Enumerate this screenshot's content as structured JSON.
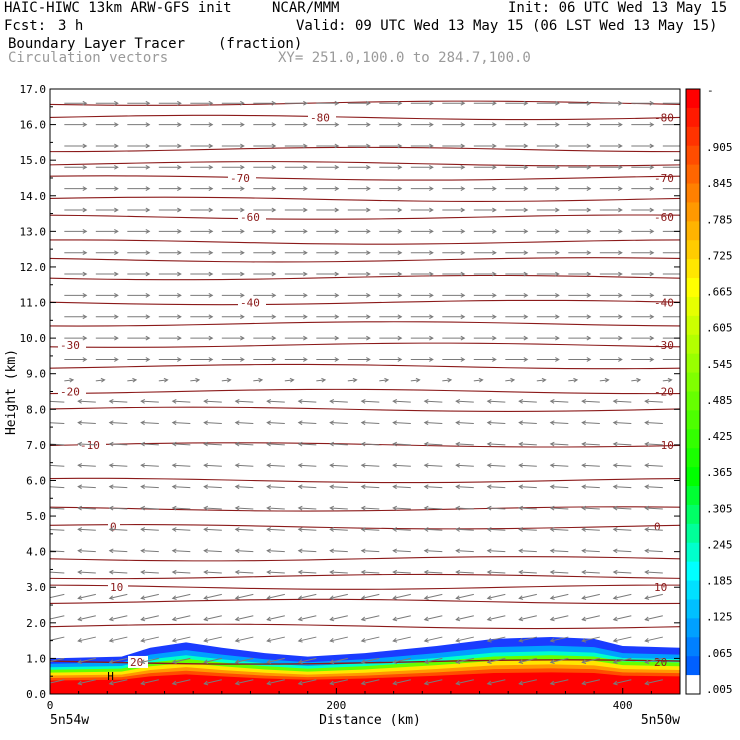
{
  "header": {
    "model": "HAIC-HIWC 13km ARW-GFS init",
    "org": "NCAR/MMM",
    "init": "Init: 06 UTC Wed 13 May 15",
    "fcst_label": "Fcst:",
    "fcst_value": "3 h",
    "valid": "Valid: 09 UTC Wed 13 May 15 (06 LST Wed 13 May 15)",
    "field": "Boundary Layer Tracer",
    "field_units": "(fraction)",
    "vectors": "Circulation vectors",
    "xy": "XY= 251.0,100.0 to 284.7,100.0"
  },
  "chart_data": {
    "type": "cross-section",
    "ylabel": "Height (km)",
    "xlabel": "Distance (km)",
    "ylim": [
      0,
      17
    ],
    "xlim": [
      0,
      440
    ],
    "yticks": [
      0,
      1,
      2,
      3,
      4,
      5,
      6,
      7,
      8,
      9,
      10,
      11,
      12,
      13,
      14,
      15,
      16,
      17
    ],
    "ytick_labels": [
      "0.0",
      "1.0",
      "2.0",
      "3.0",
      "4.0",
      "5.0",
      "6.0",
      "7.0",
      "8.0",
      "9.0",
      "10.0",
      "11.0",
      "12.0",
      "13.0",
      "14.0",
      "15.0",
      "16.0",
      "17.0"
    ],
    "xticks": [
      0,
      200,
      400
    ],
    "xtick_labels": [
      "0",
      "200",
      "400"
    ],
    "x_end_labels": [
      "5n54w",
      "5n50w"
    ],
    "colorbar": {
      "labels": [
        ".905",
        ".845",
        ".785",
        ".725",
        ".665",
        ".605",
        ".545",
        ".485",
        ".425",
        ".365",
        ".305",
        ".245",
        ".185",
        ".125",
        ".065",
        ".005"
      ],
      "top_label": "-",
      "colors": [
        "#ff0000",
        "#ff1a00",
        "#ff3300",
        "#ff4d00",
        "#ff6600",
        "#ff8000",
        "#ff9900",
        "#ffb300",
        "#ffcc00",
        "#ffe600",
        "#ffff00",
        "#e6ff00",
        "#ccff00",
        "#b3ff00",
        "#99ff00",
        "#80ff00",
        "#66ff00",
        "#4dff00",
        "#33ff00",
        "#1aff00",
        "#00ff00",
        "#00ff33",
        "#00ff66",
        "#00ff99",
        "#00ffcc",
        "#00ffff",
        "#00e0ff",
        "#00c0ff",
        "#00a0ff",
        "#0080ff",
        "#0060ff",
        "#ffffff"
      ]
    },
    "temperature_contours": [
      {
        "label": "-80",
        "z": 16.2
      },
      {
        "label": "-70",
        "z": 14.5
      },
      {
        "label": "-60",
        "z": 13.4
      },
      {
        "label": "-40",
        "z": 11.0
      },
      {
        "label": "-30",
        "z": 9.8
      },
      {
        "label": "-20",
        "z": 8.5
      },
      {
        "label": "-10",
        "z": 7.0
      },
      {
        "label": "0",
        "z": 4.7
      },
      {
        "label": "10",
        "z": 3.0
      },
      {
        "label": "20",
        "z": 0.9
      }
    ],
    "unlabeled_contour_levels": [
      16.6,
      15.3,
      14.9,
      13.9,
      12.7,
      12.2,
      11.7,
      10.4,
      9.2,
      8.0,
      6.0,
      5.2,
      3.8,
      3.3,
      2.6,
      1.9
    ],
    "boundary_layer_top_km": [
      {
        "x": 0,
        "z": 1.0
      },
      {
        "x": 50,
        "z": 1.05
      },
      {
        "x": 70,
        "z": 1.3
      },
      {
        "x": 95,
        "z": 1.45
      },
      {
        "x": 120,
        "z": 1.3
      },
      {
        "x": 150,
        "z": 1.15
      },
      {
        "x": 180,
        "z": 1.05
      },
      {
        "x": 220,
        "z": 1.15
      },
      {
        "x": 270,
        "z": 1.35
      },
      {
        "x": 310,
        "z": 1.55
      },
      {
        "x": 350,
        "z": 1.6
      },
      {
        "x": 380,
        "z": 1.55
      },
      {
        "x": 400,
        "z": 1.35
      },
      {
        "x": 440,
        "z": 1.3
      }
    ],
    "h_marker": "H"
  }
}
